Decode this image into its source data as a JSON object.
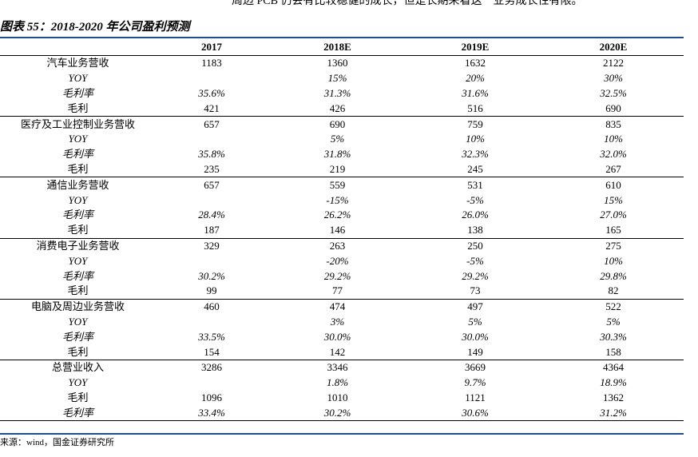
{
  "top_text": "周边 PCB 仍会有比较稳健的成长，但是长期来看这一业务成长性有限。",
  "figure_title": "图表 55：2018-2020 年公司盈利预测",
  "columns": [
    "",
    "2017",
    "2018E",
    "2019E",
    "2020E"
  ],
  "rows": [
    {
      "label": "汽车业务营收",
      "values": [
        "1183",
        "1360",
        "1632",
        "2122"
      ]
    },
    {
      "label": "YOY",
      "values": [
        "",
        "15%",
        "20%",
        "30%"
      ]
    },
    {
      "label": "毛利率",
      "values": [
        "35.6%",
        "31.3%",
        "31.6%",
        "32.5%"
      ]
    },
    {
      "label": "毛利",
      "values": [
        "421",
        "426",
        "516",
        "690"
      ]
    },
    {
      "label": "医疗及工业控制业务营收",
      "values": [
        "657",
        "690",
        "759",
        "835"
      ]
    },
    {
      "label": "YOY",
      "values": [
        "",
        "5%",
        "10%",
        "10%"
      ]
    },
    {
      "label": "毛利率",
      "values": [
        "35.8%",
        "31.8%",
        "32.3%",
        "32.0%"
      ]
    },
    {
      "label": "毛利",
      "values": [
        "235",
        "219",
        "245",
        "267"
      ]
    },
    {
      "label": "通信业务营收",
      "values": [
        "657",
        "559",
        "531",
        "610"
      ]
    },
    {
      "label": "YOY",
      "values": [
        "",
        "-15%",
        "-5%",
        "15%"
      ]
    },
    {
      "label": "毛利率",
      "values": [
        "28.4%",
        "26.2%",
        "26.0%",
        "27.0%"
      ]
    },
    {
      "label": "毛利",
      "values": [
        "187",
        "146",
        "138",
        "165"
      ]
    },
    {
      "label": "消费电子业务营收",
      "values": [
        "329",
        "263",
        "250",
        "275"
      ]
    },
    {
      "label": "YOY",
      "values": [
        "",
        "-20%",
        "-5%",
        "10%"
      ]
    },
    {
      "label": "毛利率",
      "values": [
        "30.2%",
        "29.2%",
        "29.2%",
        "29.8%"
      ]
    },
    {
      "label": "毛利",
      "values": [
        "99",
        "77",
        "73",
        "82"
      ]
    },
    {
      "label": "电脑及周边业务营收",
      "values": [
        "460",
        "474",
        "497",
        "522"
      ]
    },
    {
      "label": "YOY",
      "values": [
        "",
        "3%",
        "5%",
        "5%"
      ]
    },
    {
      "label": "毛利率",
      "values": [
        "33.5%",
        "30.0%",
        "30.0%",
        "30.3%"
      ]
    },
    {
      "label": "毛利",
      "values": [
        "154",
        "142",
        "149",
        "158"
      ]
    },
    {
      "label": "总营业收入",
      "values": [
        "3286",
        "3346",
        "3669",
        "4364"
      ]
    },
    {
      "label": "YOY",
      "values": [
        "",
        "1.8%",
        "9.7%",
        "18.9%"
      ]
    },
    {
      "label": "毛利",
      "values": [
        "1096",
        "1010",
        "1121",
        "1362"
      ]
    },
    {
      "label": "毛利率",
      "values": [
        "33.4%",
        "30.2%",
        "30.6%",
        "31.2%"
      ]
    }
  ],
  "source": "来源：wind，国金证券研究所"
}
